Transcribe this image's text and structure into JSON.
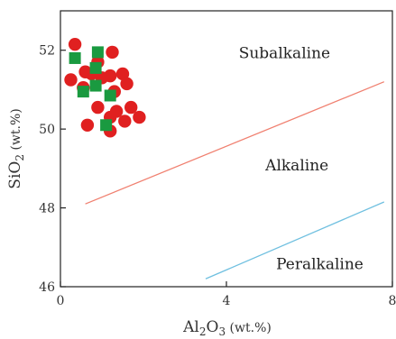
{
  "chart_data": {
    "type": "scatter",
    "title": "",
    "xlabel": {
      "base": "Al",
      "sub1": "2",
      "mid": "O",
      "sub2": "3",
      "unit": " (wt.%)"
    },
    "ylabel": {
      "base": "SiO",
      "sub": "2",
      "unit": " (wt.%)"
    },
    "xlim": [
      0,
      8
    ],
    "ylim": [
      46,
      53
    ],
    "x_ticks": [
      {
        "value": 0,
        "label": "0"
      },
      {
        "value": 4,
        "label": "4"
      },
      {
        "value": 8,
        "label": "8"
      }
    ],
    "y_ticks": [
      {
        "value": 46,
        "label": "46"
      },
      {
        "value": 48,
        "label": "48"
      },
      {
        "value": 50,
        "label": "50"
      },
      {
        "value": 52,
        "label": "52"
      }
    ],
    "series": [
      {
        "marker": "circle",
        "color": "#e02020",
        "points": [
          [
            0.35,
            52.15
          ],
          [
            0.25,
            51.25
          ],
          [
            0.55,
            51.05
          ],
          [
            0.6,
            51.45
          ],
          [
            0.75,
            51.4
          ],
          [
            0.9,
            51.7
          ],
          [
            1.0,
            51.3
          ],
          [
            1.25,
            51.95
          ],
          [
            1.2,
            51.35
          ],
          [
            1.5,
            51.4
          ],
          [
            1.6,
            51.15
          ],
          [
            1.3,
            50.95
          ],
          [
            0.9,
            50.55
          ],
          [
            1.2,
            50.3
          ],
          [
            1.35,
            50.45
          ],
          [
            1.7,
            50.55
          ],
          [
            1.55,
            50.2
          ],
          [
            1.9,
            50.3
          ],
          [
            0.65,
            50.1
          ],
          [
            1.2,
            49.95
          ]
        ]
      },
      {
        "marker": "square",
        "color": "#1a9a40",
        "points": [
          [
            0.35,
            51.8
          ],
          [
            0.9,
            51.95
          ],
          [
            0.55,
            50.95
          ],
          [
            0.85,
            51.1
          ],
          [
            1.2,
            50.85
          ],
          [
            1.1,
            50.1
          ],
          [
            0.85,
            51.55
          ]
        ]
      }
    ],
    "boundary_lines": [
      {
        "name": "subalkaline-alkaline",
        "color": "#f08070",
        "points": [
          [
            0.6,
            48.1
          ],
          [
            7.8,
            51.2
          ]
        ]
      },
      {
        "name": "alkaline-peralkaline",
        "color": "#70c0e0",
        "points": [
          [
            3.5,
            46.2
          ],
          [
            7.8,
            48.15
          ]
        ]
      }
    ],
    "region_labels": [
      {
        "name": "subalkaline",
        "text": "Subalkaline",
        "x": 5.4,
        "y": 51.8
      },
      {
        "name": "alkaline",
        "text": "Alkaline",
        "x": 5.7,
        "y": 48.95
      },
      {
        "name": "peralkaline",
        "text": "Peralkaline",
        "x": 6.25,
        "y": 46.45
      }
    ]
  }
}
